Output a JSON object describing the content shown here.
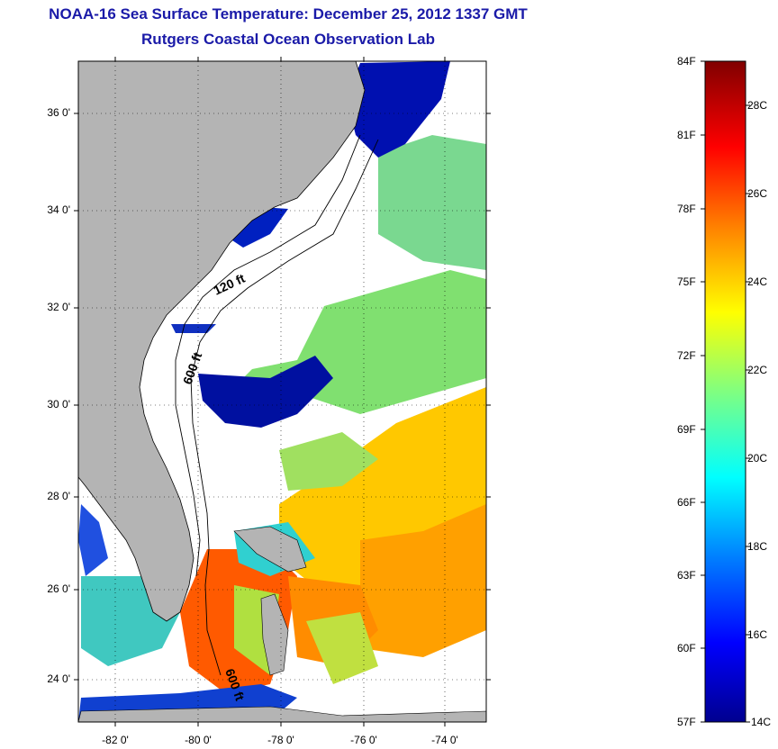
{
  "title": {
    "line1": "NOAA-16 Sea Surface Temperature:  December 25, 2012 1337 GMT",
    "line2": "Rutgers Coastal Ocean Observation Lab"
  },
  "map": {
    "lat_labels": [
      "36 0'",
      "34 0'",
      "32 0'",
      "30 0'",
      "28 0'",
      "26 0'",
      "24 0'"
    ],
    "lon_labels": [
      "-82 0'",
      "-80 0'",
      "-78 0'",
      "-76 0'",
      "-74 0'"
    ],
    "contour_labels": [
      "120 ft",
      "600 ft",
      "600 ft"
    ],
    "colors": {
      "land": "#b4b4b4",
      "cloud": "#ffffff",
      "frame": "#000000"
    }
  },
  "colorbar": {
    "fahrenheit_labels": [
      "84F",
      "81F",
      "78F",
      "75F",
      "72F",
      "69F",
      "66F",
      "63F",
      "60F",
      "57F"
    ],
    "celsius_labels": [
      "28C",
      "26C",
      "24C",
      "22C",
      "20C",
      "18C",
      "16C",
      "14C"
    ],
    "colors": [
      "#00008f",
      "#0000ff",
      "#0080ff",
      "#00ffff",
      "#80ff80",
      "#ffff00",
      "#ff8000",
      "#ff0000",
      "#800000"
    ]
  }
}
